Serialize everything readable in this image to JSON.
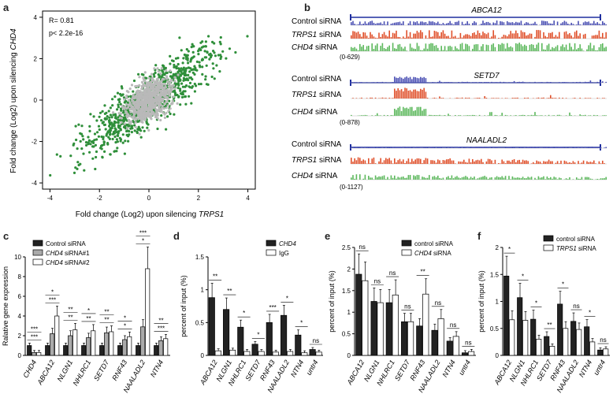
{
  "panel_letters": {
    "a": "a",
    "b": "b",
    "c": "c",
    "d": "d",
    "e": "e",
    "f": "f"
  },
  "panel_a": {
    "stats_r": "R= 0.81",
    "stats_p": "p< 2.2e-16",
    "xlabel_prefix": "Fold change (Log2) upon silencing ",
    "xlabel_gene": "TRPS1",
    "ylabel_prefix": "Fold change (Log2) upon silencing ",
    "ylabel_gene": "CHD4",
    "colors": {
      "all": "#b9b9b9",
      "sig": "#2f8f3a"
    }
  },
  "panel_b": {
    "tracks": [
      {
        "gene": "ABCA12",
        "range": "(0-629)"
      },
      {
        "gene": "SETD7",
        "range": "(0-878)"
      },
      {
        "gene": "NAALADL2",
        "range": "(0-1127)"
      }
    ],
    "labels": {
      "control": "Control siRNA",
      "trps1_gene": "TRPS1",
      "chd4_gene": "CHD4",
      "sirna": " siRNA"
    },
    "colors": {
      "control": "#4a4fb3",
      "trps1": "#e0512c",
      "chd4": "#5cb85c",
      "gene": "#1f2f9f"
    }
  },
  "chart_data": [
    {
      "id": "c",
      "type": "bar",
      "ylabel": "Ralative gene expression",
      "ylim": [
        0,
        10
      ],
      "categories": [
        "CHD4",
        "ABCA12",
        "NLGN1",
        "NHLRC1",
        "SETD7",
        "RNF43",
        "NAALADL2",
        "NTN4"
      ],
      "series": [
        {
          "name": "Control siRNA",
          "values": [
            1,
            1,
            1,
            1,
            1,
            1,
            1,
            1
          ]
        },
        {
          "name": "CHD4 siRNA#1",
          "values": [
            0.3,
            2.2,
            2.0,
            1.8,
            2.3,
            1.6,
            2.9,
            1.5
          ]
        },
        {
          "name": "CHD4 siRNA#2",
          "values": [
            0.3,
            4.0,
            2.6,
            2.5,
            2.4,
            1.9,
            8.8,
            1.7
          ]
        }
      ],
      "legend": [
        "Control  siRNA",
        "CHD4 siRNA#1",
        "CHD4 siRNA#2"
      ],
      "sig": [
        [
          "***",
          "***"
        ],
        [
          "***",
          "*"
        ],
        [
          "**",
          "**"
        ],
        [
          "**",
          "*"
        ],
        [
          "**",
          "**"
        ],
        [
          "*",
          "*"
        ],
        [
          "*",
          "***"
        ],
        [
          "***",
          "**"
        ]
      ]
    },
    {
      "id": "d",
      "type": "bar",
      "ylabel": "percent of input (%)",
      "ylim": [
        0,
        1.5
      ],
      "categories": [
        "ABCA12",
        "NLGN1",
        "NHLRC1",
        "SETD7",
        "RNF43",
        "NAALADL2",
        "NTN4",
        "untr4"
      ],
      "series": [
        {
          "name": "CHD4",
          "values": [
            0.88,
            0.7,
            0.43,
            0.17,
            0.5,
            0.61,
            0.31,
            0.09
          ]
        },
        {
          "name": "IgG",
          "values": [
            0.07,
            0.08,
            0.06,
            0.06,
            0.05,
            0.06,
            0.04,
            0.05
          ]
        }
      ],
      "legend": [
        "CHD4",
        "IgG"
      ],
      "sig": [
        "**",
        "**",
        "*",
        "*",
        "***",
        "*",
        "*",
        "ns"
      ]
    },
    {
      "id": "e",
      "type": "bar",
      "ylabel": "percent of input (%)",
      "ylim": [
        0,
        2.5
      ],
      "categories": [
        "ABCA12",
        "NLGN1",
        "NHLRC1",
        "SETD7",
        "RNF43",
        "NAALADL2",
        "NTN4",
        "untr4"
      ],
      "series": [
        {
          "name": "control siRNA",
          "values": [
            1.88,
            1.25,
            1.22,
            0.78,
            0.68,
            0.58,
            0.33,
            0.06
          ]
        },
        {
          "name": "CHD4 siRNA",
          "values": [
            1.73,
            1.22,
            1.4,
            0.78,
            1.42,
            0.85,
            0.44,
            0.09
          ]
        }
      ],
      "legend": [
        "control siRNA",
        "CHD4 siRNA"
      ],
      "sig": [
        "ns",
        "ns",
        "ns",
        "ns",
        "**",
        "ns",
        "ns",
        "ns"
      ]
    },
    {
      "id": "f",
      "type": "bar",
      "ylabel": "percent of input (%)",
      "ylim": [
        0,
        2.0
      ],
      "categories": [
        "ABCA12",
        "NLGN1",
        "NHLRC1",
        "SETD7",
        "RNF43",
        "NAALADL2",
        "NTN4",
        "untr4"
      ],
      "series": [
        {
          "name": "control siRNA",
          "values": [
            1.47,
            1.07,
            0.67,
            0.35,
            0.95,
            0.63,
            0.53,
            0.1
          ]
        },
        {
          "name": "TRPS1 siRNA",
          "values": [
            0.66,
            0.65,
            0.3,
            0.17,
            0.5,
            0.48,
            0.25,
            0.12
          ]
        }
      ],
      "legend": [
        "control siRNA",
        "TRPS1 siRNA"
      ],
      "sig": [
        "*",
        "*",
        "*",
        "**",
        "*",
        "ns",
        "*",
        "ns"
      ]
    }
  ]
}
